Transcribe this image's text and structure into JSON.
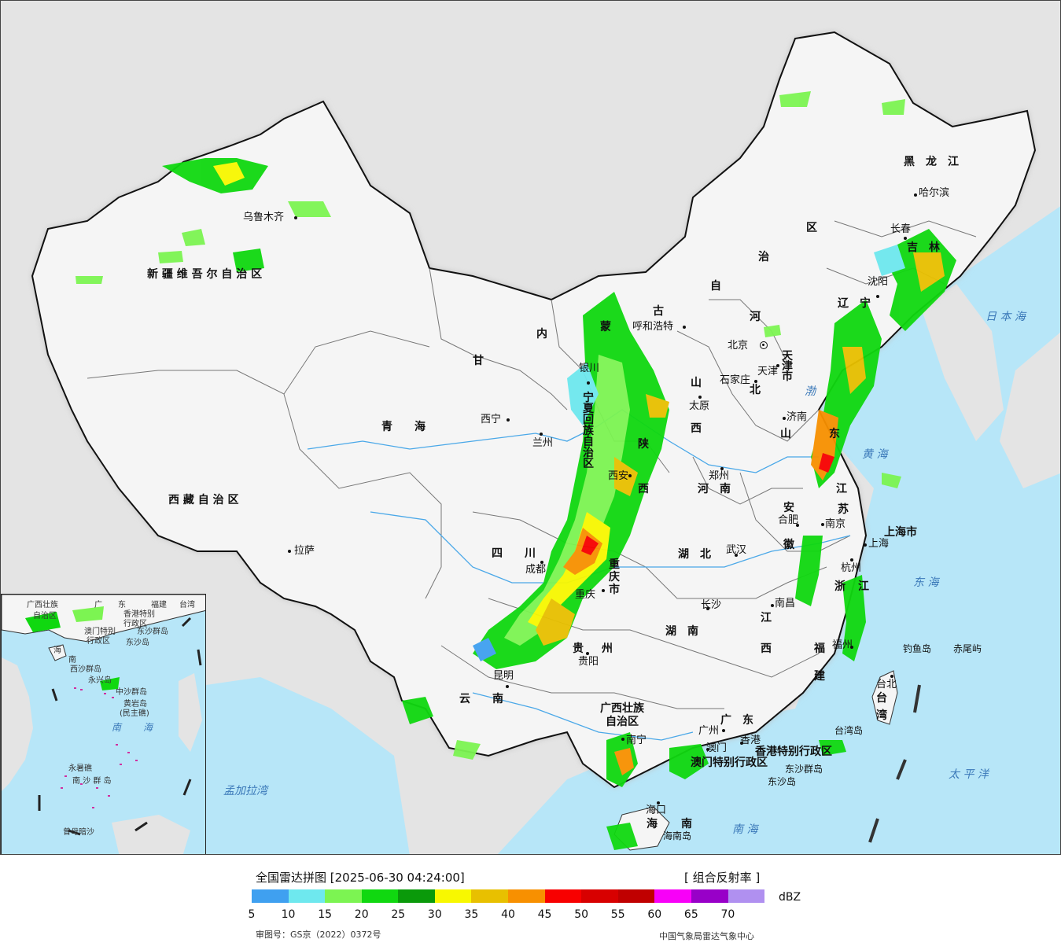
{
  "map": {
    "provinces": [
      {
        "name": "新 疆 维 吾 尔 自 治 区"
      },
      {
        "name": "西 藏 自 治 区"
      },
      {
        "name": "青　　海"
      },
      {
        "name": "四　　川"
      },
      {
        "name": "云　　南"
      },
      {
        "name": "甘"
      },
      {
        "name": "内"
      },
      {
        "name": "蒙"
      },
      {
        "name": "古"
      },
      {
        "name": "自"
      },
      {
        "name": "治"
      },
      {
        "name": "区"
      },
      {
        "name": "黑　龙　江"
      },
      {
        "name": "吉　林"
      },
      {
        "name": "辽　宁"
      },
      {
        "name": "河"
      },
      {
        "name": "北"
      },
      {
        "name": "山"
      },
      {
        "name": "西"
      },
      {
        "name": "陕"
      },
      {
        "name": "西"
      },
      {
        "name": "宁"
      },
      {
        "name": "夏"
      },
      {
        "name": "回"
      },
      {
        "name": "族"
      },
      {
        "name": "自"
      },
      {
        "name": "治"
      },
      {
        "name": "区"
      },
      {
        "name": "山"
      },
      {
        "name": "东"
      },
      {
        "name": "河　南"
      },
      {
        "name": "江"
      },
      {
        "name": "苏"
      },
      {
        "name": "安"
      },
      {
        "name": "徽"
      },
      {
        "name": "湖　北"
      },
      {
        "name": "重"
      },
      {
        "name": "庆"
      },
      {
        "name": "市"
      },
      {
        "name": "贵"
      },
      {
        "name": "州"
      },
      {
        "name": "湖　南"
      },
      {
        "name": "江"
      },
      {
        "name": "西"
      },
      {
        "name": "浙"
      },
      {
        "name": "江"
      },
      {
        "name": "福"
      },
      {
        "name": "建"
      },
      {
        "name": "广　东"
      },
      {
        "name": "广西壮族"
      },
      {
        "name": "自治区"
      },
      {
        "name": "海"
      },
      {
        "name": "南"
      },
      {
        "name": "台"
      },
      {
        "name": "湾"
      },
      {
        "name": "上海市"
      },
      {
        "name": "香港特别行政区"
      },
      {
        "name": "澳门特别行政区"
      },
      {
        "name": "天"
      },
      {
        "name": "津"
      },
      {
        "name": "市"
      }
    ],
    "cities": [
      {
        "name": "乌鲁木齐"
      },
      {
        "name": "拉萨"
      },
      {
        "name": "西宁"
      },
      {
        "name": "兰州"
      },
      {
        "name": "银川"
      },
      {
        "name": "呼和浩特"
      },
      {
        "name": "北京"
      },
      {
        "name": "天津"
      },
      {
        "name": "石家庄"
      },
      {
        "name": "太原"
      },
      {
        "name": "济南"
      },
      {
        "name": "郑州"
      },
      {
        "name": "西安"
      },
      {
        "name": "成都"
      },
      {
        "name": "重庆"
      },
      {
        "name": "贵阳"
      },
      {
        "name": "昆明"
      },
      {
        "name": "南宁"
      },
      {
        "name": "广州"
      },
      {
        "name": "澳门"
      },
      {
        "name": "香港"
      },
      {
        "name": "海口"
      },
      {
        "name": "长沙"
      },
      {
        "name": "武汉"
      },
      {
        "name": "合肥"
      },
      {
        "name": "南京"
      },
      {
        "name": "上海"
      },
      {
        "name": "杭州"
      },
      {
        "name": "南昌"
      },
      {
        "name": "福州"
      },
      {
        "name": "台北"
      },
      {
        "name": "沈阳"
      },
      {
        "name": "长春"
      },
      {
        "name": "哈尔滨"
      }
    ],
    "seas": [
      {
        "name": "日 本 海"
      },
      {
        "name": "黄 海"
      },
      {
        "name": "东 海"
      },
      {
        "name": "太 平 洋"
      },
      {
        "name": "南 海"
      },
      {
        "name": "孟加拉湾"
      },
      {
        "name": "渤"
      }
    ],
    "islands": [
      {
        "name": "钓鱼岛"
      },
      {
        "name": "赤尾屿"
      },
      {
        "name": "台湾岛"
      },
      {
        "name": "东沙群岛"
      },
      {
        "name": "东沙岛"
      },
      {
        "name": "海南岛"
      }
    ],
    "inset_labels": [
      {
        "name": "广西壮族"
      },
      {
        "name": "自治区"
      },
      {
        "name": "广"
      },
      {
        "name": "东"
      },
      {
        "name": "福建"
      },
      {
        "name": "台湾"
      },
      {
        "name": "香港特别"
      },
      {
        "name": "行政区"
      },
      {
        "name": "澳门特别"
      },
      {
        "name": "行政区"
      },
      {
        "name": "东沙群岛"
      },
      {
        "name": "东沙岛"
      },
      {
        "name": "海"
      },
      {
        "name": "南"
      },
      {
        "name": "西沙群岛"
      },
      {
        "name": "永兴岛"
      },
      {
        "name": "中沙群岛"
      },
      {
        "name": "黄岩岛"
      },
      {
        "name": "(民主礁)"
      },
      {
        "name": "永暑礁"
      },
      {
        "name": "南 沙 群 岛"
      },
      {
        "name": "曾母暗沙"
      }
    ],
    "inset_seas": [
      {
        "name": "南"
      },
      {
        "name": "海"
      }
    ]
  },
  "legend": {
    "title": "全国雷达拼图 [2025-06-30 04:24:00]",
    "product": "[ 组合反射率 ]",
    "unit": "dBZ",
    "colors": [
      "#3fa0f0",
      "#6ee8ee",
      "#7cf452",
      "#10d810",
      "#0a9a0a",
      "#f8f800",
      "#e8c000",
      "#f89000",
      "#f80000",
      "#d80000",
      "#c00000",
      "#f800f8",
      "#9800c8",
      "#b090f0"
    ],
    "ticks": [
      "5",
      "10",
      "15",
      "20",
      "25",
      "30",
      "35",
      "40",
      "45",
      "50",
      "55",
      "60",
      "65",
      "70"
    ],
    "approval": "审图号：GS京（2022）0372号",
    "issuer": "中国气象局雷达气象中心"
  }
}
